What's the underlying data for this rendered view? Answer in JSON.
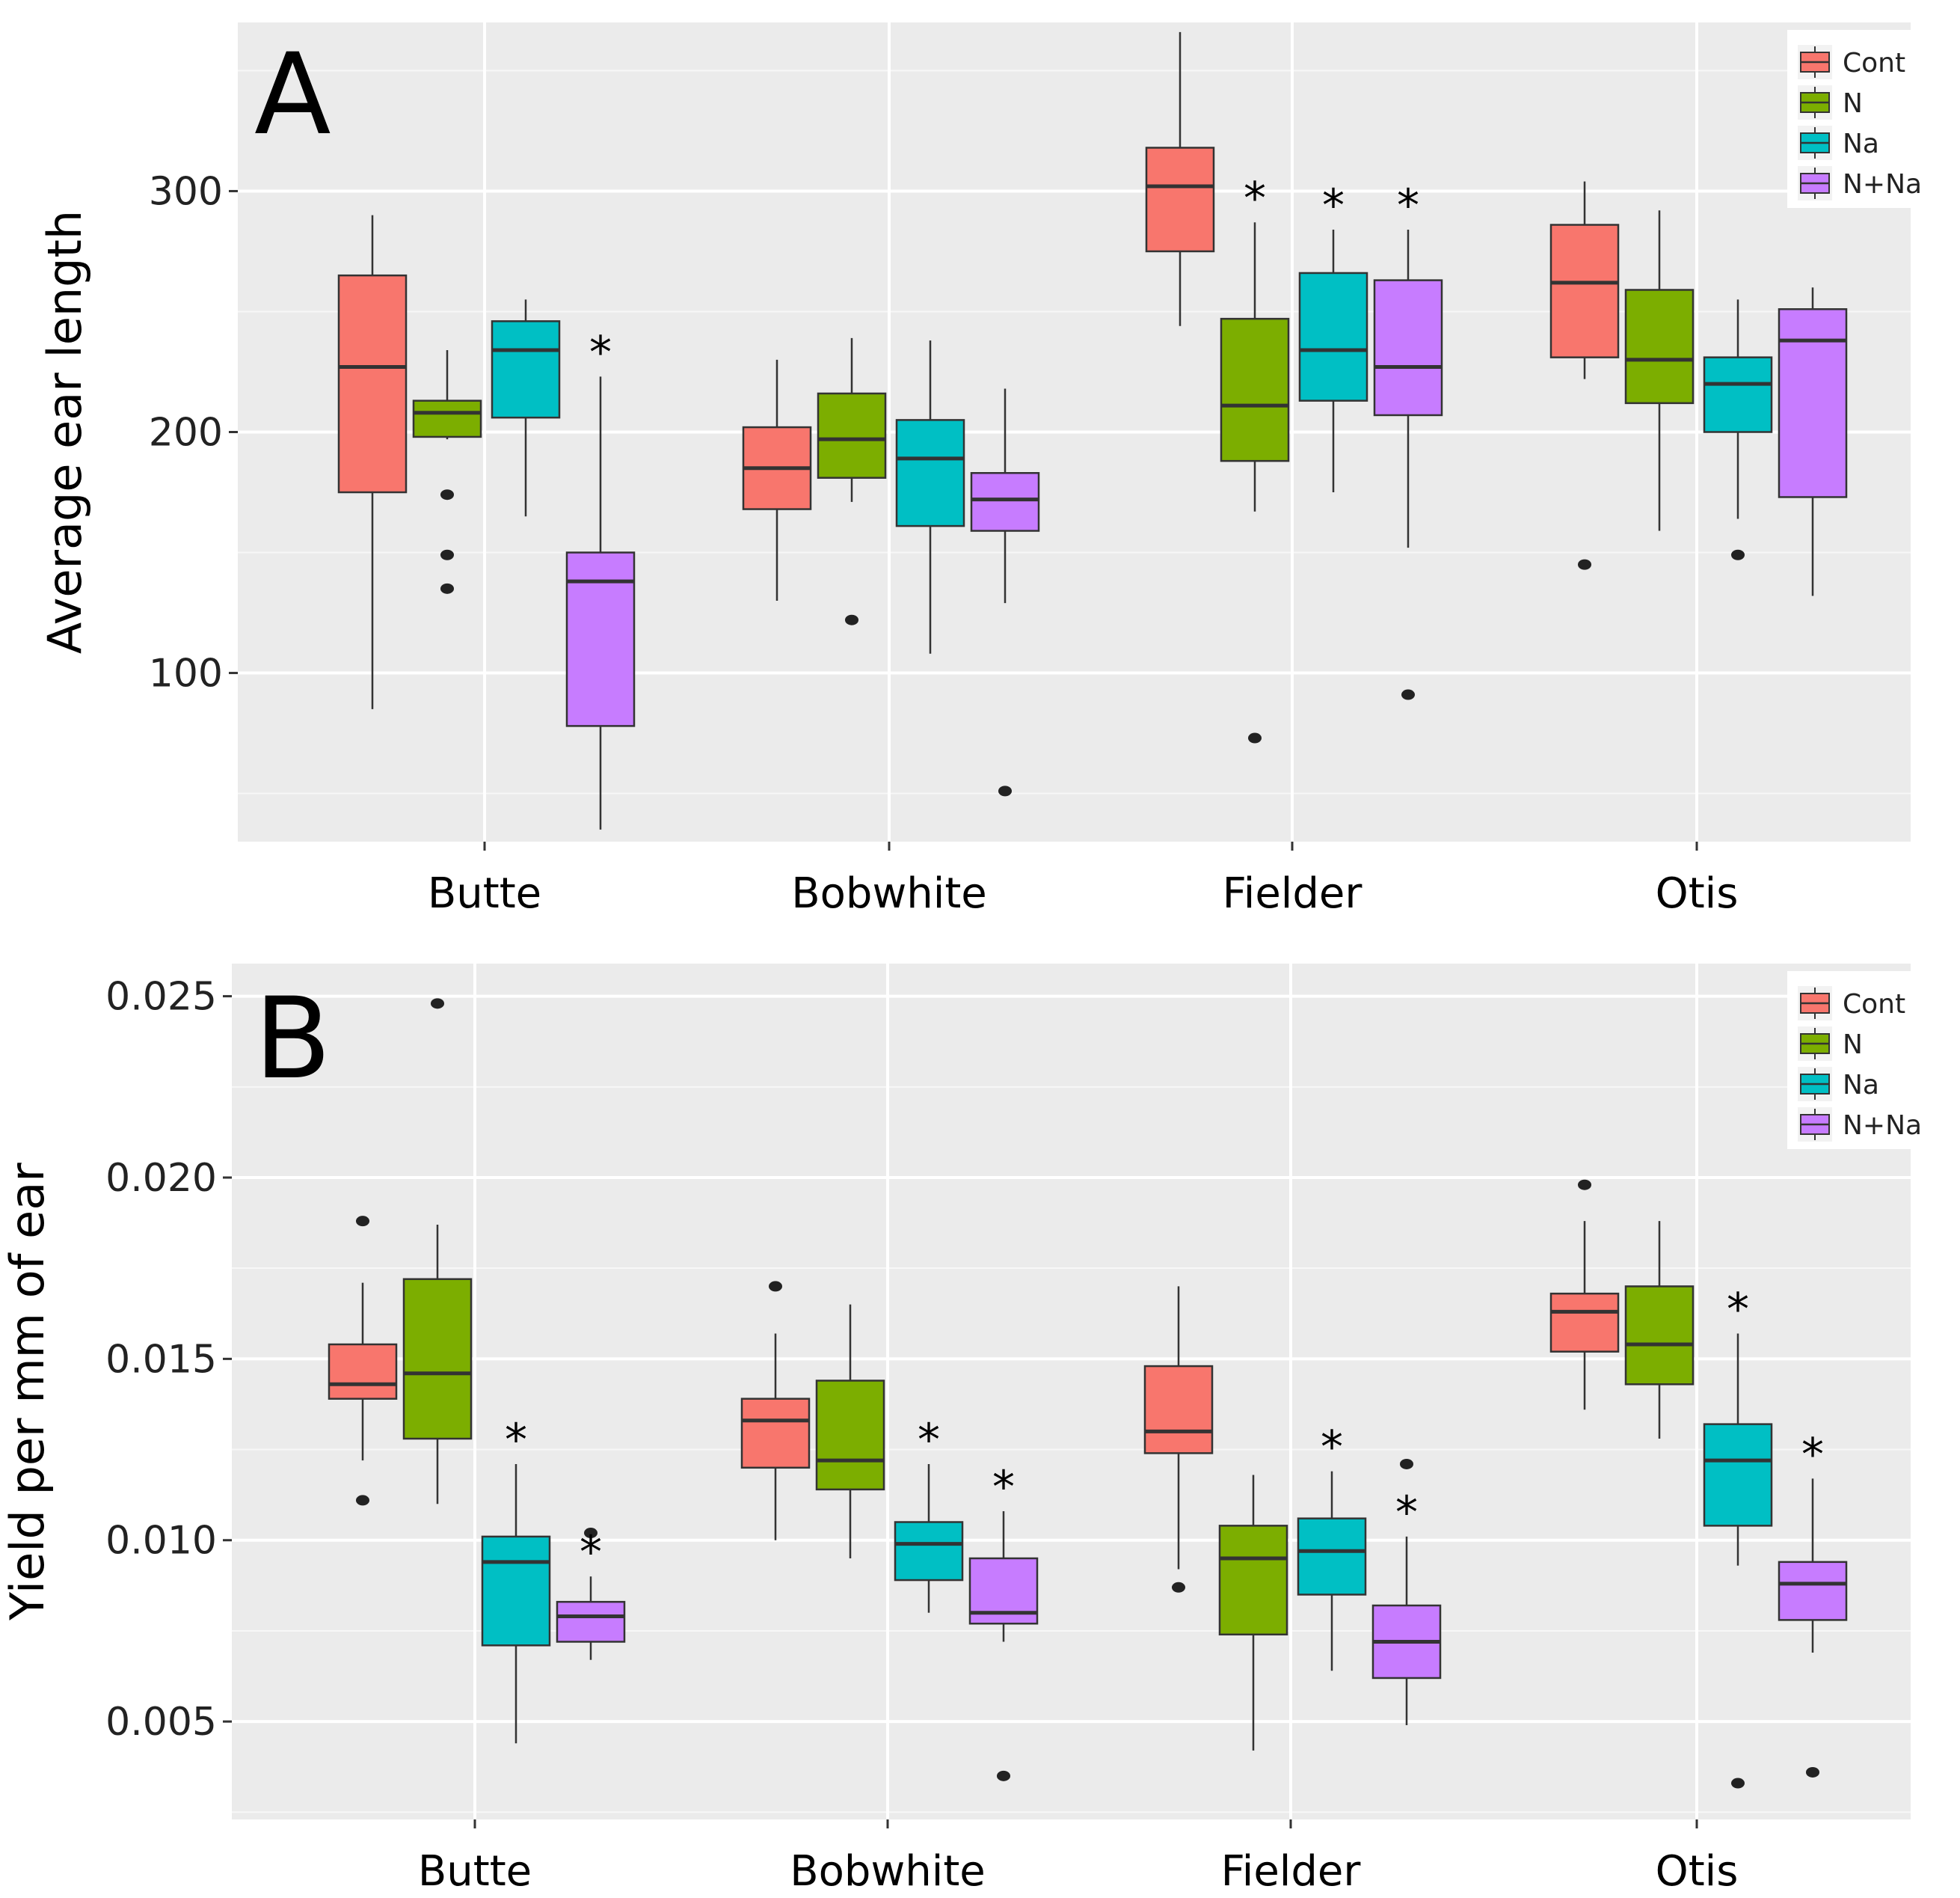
{
  "chart_data": [
    {
      "type": "box",
      "panel_label": "A",
      "title": "",
      "xlabel": "",
      "ylabel": "Average ear length",
      "ylim": [
        30,
        370
      ],
      "yticks": [
        100,
        200,
        300
      ],
      "grid": true,
      "categories": [
        "Butte",
        "Bobwhite",
        "Fielder",
        "Otis"
      ],
      "legend": {
        "position": "top-right",
        "entries": [
          "Cont",
          "N",
          "Na",
          "N+Na"
        ]
      },
      "colors": [
        "#F8766D",
        "#7CAE00",
        "#00BFC4",
        "#C77CFF"
      ],
      "significance_marker": "*",
      "series": [
        {
          "name": "Cont",
          "boxes": [
            {
              "whisker_low": 85,
              "q1": 175,
              "median": 227,
              "q3": 265,
              "whisker_high": 290,
              "outliers": [],
              "significant": false
            },
            {
              "whisker_low": 130,
              "q1": 168,
              "median": 185,
              "q3": 202,
              "whisker_high": 230,
              "outliers": [],
              "significant": false
            },
            {
              "whisker_low": 244,
              "q1": 275,
              "median": 302,
              "q3": 318,
              "whisker_high": 366,
              "outliers": [],
              "significant": false
            },
            {
              "whisker_low": 222,
              "q1": 231,
              "median": 262,
              "q3": 286,
              "whisker_high": 304,
              "outliers": [
                145
              ],
              "significant": false
            }
          ]
        },
        {
          "name": "N",
          "boxes": [
            {
              "whisker_low": 197,
              "q1": 198,
              "median": 208,
              "q3": 213,
              "whisker_high": 234,
              "outliers": [
                174,
                149,
                135
              ],
              "significant": false
            },
            {
              "whisker_low": 171,
              "q1": 181,
              "median": 197,
              "q3": 216,
              "whisker_high": 239,
              "outliers": [
                122
              ],
              "significant": false
            },
            {
              "whisker_low": 167,
              "q1": 188,
              "median": 211,
              "q3": 247,
              "whisker_high": 287,
              "outliers": [
                73
              ],
              "significant": true
            },
            {
              "whisker_low": 159,
              "q1": 212,
              "median": 230,
              "q3": 259,
              "whisker_high": 292,
              "outliers": [],
              "significant": false
            }
          ]
        },
        {
          "name": "Na",
          "boxes": [
            {
              "whisker_low": 165,
              "q1": 206,
              "median": 234,
              "q3": 246,
              "whisker_high": 255,
              "outliers": [],
              "significant": false
            },
            {
              "whisker_low": 108,
              "q1": 161,
              "median": 189,
              "q3": 205,
              "whisker_high": 238,
              "outliers": [],
              "significant": false
            },
            {
              "whisker_low": 175,
              "q1": 213,
              "median": 234,
              "q3": 266,
              "whisker_high": 284,
              "outliers": [],
              "significant": true
            },
            {
              "whisker_low": 164,
              "q1": 200,
              "median": 220,
              "q3": 231,
              "whisker_high": 255,
              "outliers": [
                149
              ],
              "significant": false
            }
          ]
        },
        {
          "name": "N+Na",
          "boxes": [
            {
              "whisker_low": 35,
              "q1": 78,
              "median": 138,
              "q3": 150,
              "whisker_high": 223,
              "outliers": [],
              "significant": true
            },
            {
              "whisker_low": 129,
              "q1": 159,
              "median": 172,
              "q3": 183,
              "whisker_high": 218,
              "outliers": [
                51
              ],
              "significant": false
            },
            {
              "whisker_low": 152,
              "q1": 207,
              "median": 227,
              "q3": 263,
              "whisker_high": 284,
              "outliers": [
                91
              ],
              "significant": true
            },
            {
              "whisker_low": 132,
              "q1": 173,
              "median": 238,
              "q3": 251,
              "whisker_high": 260,
              "outliers": [],
              "significant": false
            }
          ]
        }
      ]
    },
    {
      "type": "box",
      "panel_label": "B",
      "title": "",
      "xlabel": "",
      "ylabel": "Yield per mm of ear",
      "ylim": [
        0.0023,
        0.0259
      ],
      "yticks": [
        0.005,
        0.01,
        0.015,
        0.02,
        0.025
      ],
      "yticklabels": [
        "0.005",
        "0.010",
        "0.015",
        "0.020",
        "0.025"
      ],
      "grid": true,
      "categories": [
        "Butte",
        "Bobwhite",
        "Fielder",
        "Otis"
      ],
      "legend": {
        "position": "top-right",
        "entries": [
          "Cont",
          "N",
          "Na",
          "N+Na"
        ]
      },
      "colors": [
        "#F8766D",
        "#7CAE00",
        "#00BFC4",
        "#C77CFF"
      ],
      "significance_marker": "*",
      "series": [
        {
          "name": "Cont",
          "boxes": [
            {
              "whisker_low": 0.0122,
              "q1": 0.0139,
              "median": 0.0143,
              "q3": 0.0154,
              "whisker_high": 0.0171,
              "outliers": [
                0.0188,
                0.0111
              ],
              "significant": false
            },
            {
              "whisker_low": 0.01,
              "q1": 0.012,
              "median": 0.0133,
              "q3": 0.0139,
              "whisker_high": 0.0157,
              "outliers": [
                0.017
              ],
              "significant": false
            },
            {
              "whisker_low": 0.0092,
              "q1": 0.0124,
              "median": 0.013,
              "q3": 0.0148,
              "whisker_high": 0.017,
              "outliers": [
                0.0087
              ],
              "significant": false
            },
            {
              "whisker_low": 0.0136,
              "q1": 0.0152,
              "median": 0.0163,
              "q3": 0.0168,
              "whisker_high": 0.0188,
              "outliers": [
                0.0198
              ],
              "significant": false
            }
          ]
        },
        {
          "name": "N",
          "boxes": [
            {
              "whisker_low": 0.011,
              "q1": 0.0128,
              "median": 0.0146,
              "q3": 0.0172,
              "whisker_high": 0.0187,
              "outliers": [
                0.0248
              ],
              "significant": false
            },
            {
              "whisker_low": 0.0095,
              "q1": 0.0114,
              "median": 0.0122,
              "q3": 0.0144,
              "whisker_high": 0.0165,
              "outliers": [],
              "significant": false
            },
            {
              "whisker_low": 0.0042,
              "q1": 0.0074,
              "median": 0.0095,
              "q3": 0.0104,
              "whisker_high": 0.0118,
              "outliers": [],
              "significant": false
            },
            {
              "whisker_low": 0.0128,
              "q1": 0.0143,
              "median": 0.0154,
              "q3": 0.017,
              "whisker_high": 0.0188,
              "outliers": [],
              "significant": false
            }
          ]
        },
        {
          "name": "Na",
          "boxes": [
            {
              "whisker_low": 0.0044,
              "q1": 0.0071,
              "median": 0.0094,
              "q3": 0.0101,
              "whisker_high": 0.0121,
              "outliers": [],
              "significant": true
            },
            {
              "whisker_low": 0.008,
              "q1": 0.0089,
              "median": 0.0099,
              "q3": 0.0105,
              "whisker_high": 0.0121,
              "outliers": [],
              "significant": true
            },
            {
              "whisker_low": 0.0064,
              "q1": 0.0085,
              "median": 0.0097,
              "q3": 0.0106,
              "whisker_high": 0.0119,
              "outliers": [],
              "significant": true
            },
            {
              "whisker_low": 0.0093,
              "q1": 0.0104,
              "median": 0.0122,
              "q3": 0.0132,
              "whisker_high": 0.0157,
              "outliers": [
                0.0033
              ],
              "significant": true
            }
          ]
        },
        {
          "name": "N+Na",
          "boxes": [
            {
              "whisker_low": 0.0067,
              "q1": 0.0072,
              "median": 0.0079,
              "q3": 0.0083,
              "whisker_high": 0.009,
              "outliers": [
                0.0102
              ],
              "significant": true
            },
            {
              "whisker_low": 0.0072,
              "q1": 0.0077,
              "median": 0.008,
              "q3": 0.0095,
              "whisker_high": 0.0108,
              "outliers": [
                0.0035
              ],
              "significant": true
            },
            {
              "whisker_low": 0.0049,
              "q1": 0.0062,
              "median": 0.0072,
              "q3": 0.0082,
              "whisker_high": 0.0101,
              "outliers": [
                0.0121
              ],
              "significant": true
            },
            {
              "whisker_low": 0.0069,
              "q1": 0.0078,
              "median": 0.0088,
              "q3": 0.0094,
              "whisker_high": 0.0117,
              "outliers": [
                0.0036
              ],
              "significant": true
            }
          ]
        }
      ]
    }
  ]
}
